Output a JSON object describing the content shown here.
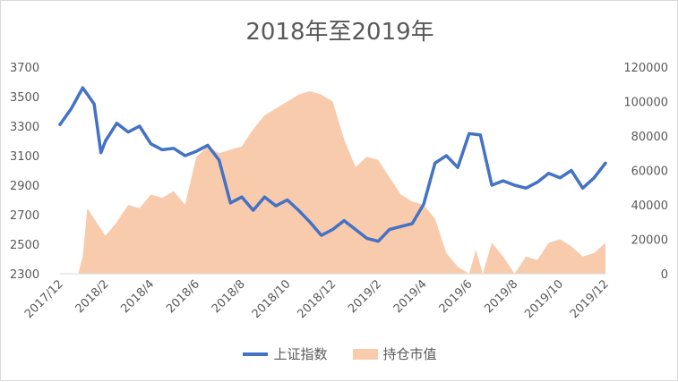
{
  "chart_data": {
    "type": "line+area",
    "title": "2018年至2019年",
    "x_tick_labels": [
      "2017/12",
      "2018/2",
      "2018/4",
      "2018/6",
      "2018/8",
      "2018/10",
      "2018/12",
      "2019/2",
      "2019/4",
      "2019/6",
      "2019/8",
      "2019/10",
      "2019/12"
    ],
    "y_left": {
      "ticks": [
        2300,
        2500,
        2700,
        2900,
        3100,
        3300,
        3500,
        3700
      ],
      "ylim": [
        2300,
        3700
      ]
    },
    "y_right": {
      "ticks": [
        0,
        20000,
        40000,
        60000,
        80000,
        100000,
        120000
      ],
      "ylim": [
        0,
        120000
      ]
    },
    "grid": "none",
    "legend_position": "bottom",
    "series": [
      {
        "name": "上证指数",
        "kind": "line",
        "axis": "left",
        "color": "#4472c4",
        "x": [
          0,
          0.25,
          0.5,
          0.75,
          0.9,
          1.0,
          1.25,
          1.5,
          1.75,
          2.0,
          2.25,
          2.5,
          2.75,
          3.0,
          3.25,
          3.5,
          3.75,
          4.0,
          4.25,
          4.5,
          4.75,
          5.0,
          5.25,
          5.5,
          5.75,
          6.0,
          6.25,
          6.5,
          6.75,
          7.0,
          7.25,
          7.5,
          7.75,
          8.0,
          8.25,
          8.5,
          8.75,
          9.0,
          9.25,
          9.5,
          9.75,
          10.0,
          10.25,
          10.5,
          10.75,
          11.0,
          11.25,
          11.5,
          11.75,
          12.0
        ],
        "values": [
          3310,
          3420,
          3560,
          3450,
          3120,
          3200,
          3320,
          3260,
          3300,
          3180,
          3140,
          3150,
          3100,
          3130,
          3170,
          3070,
          2780,
          2820,
          2730,
          2820,
          2760,
          2800,
          2730,
          2650,
          2560,
          2600,
          2660,
          2600,
          2540,
          2520,
          2600,
          2620,
          2640,
          2770,
          3050,
          3100,
          3020,
          3250,
          3240,
          2900,
          2930,
          2900,
          2880,
          2920,
          2980,
          2950,
          3000,
          2880,
          2950,
          3050
        ]
      },
      {
        "name": "持仓市值",
        "kind": "area",
        "axis": "right",
        "color": "#f8cbad",
        "x": [
          0,
          0.4,
          0.5,
          0.6,
          0.75,
          1.0,
          1.25,
          1.5,
          1.75,
          2.0,
          2.25,
          2.5,
          2.75,
          3.0,
          3.25,
          3.5,
          3.75,
          4.0,
          4.25,
          4.5,
          4.75,
          5.0,
          5.25,
          5.5,
          5.75,
          6.0,
          6.25,
          6.5,
          6.75,
          7.0,
          7.25,
          7.5,
          7.75,
          8.0,
          8.25,
          8.5,
          8.75,
          9.0,
          9.15,
          9.3,
          9.5,
          9.75,
          10.0,
          10.25,
          10.5,
          10.75,
          11.0,
          11.25,
          11.5,
          11.75,
          12.0
        ],
        "values": [
          0,
          0,
          10000,
          38000,
          32000,
          22000,
          30000,
          40000,
          38000,
          46000,
          44000,
          48000,
          40000,
          68000,
          74000,
          70000,
          72000,
          74000,
          84000,
          92000,
          96000,
          100000,
          104000,
          106000,
          104000,
          100000,
          78000,
          62000,
          68000,
          66000,
          56000,
          46000,
          42000,
          40000,
          32000,
          12000,
          4000,
          0,
          14000,
          0,
          18000,
          10000,
          0,
          10000,
          8000,
          18000,
          20000,
          16000,
          10000,
          12000,
          18000
        ]
      }
    ]
  }
}
